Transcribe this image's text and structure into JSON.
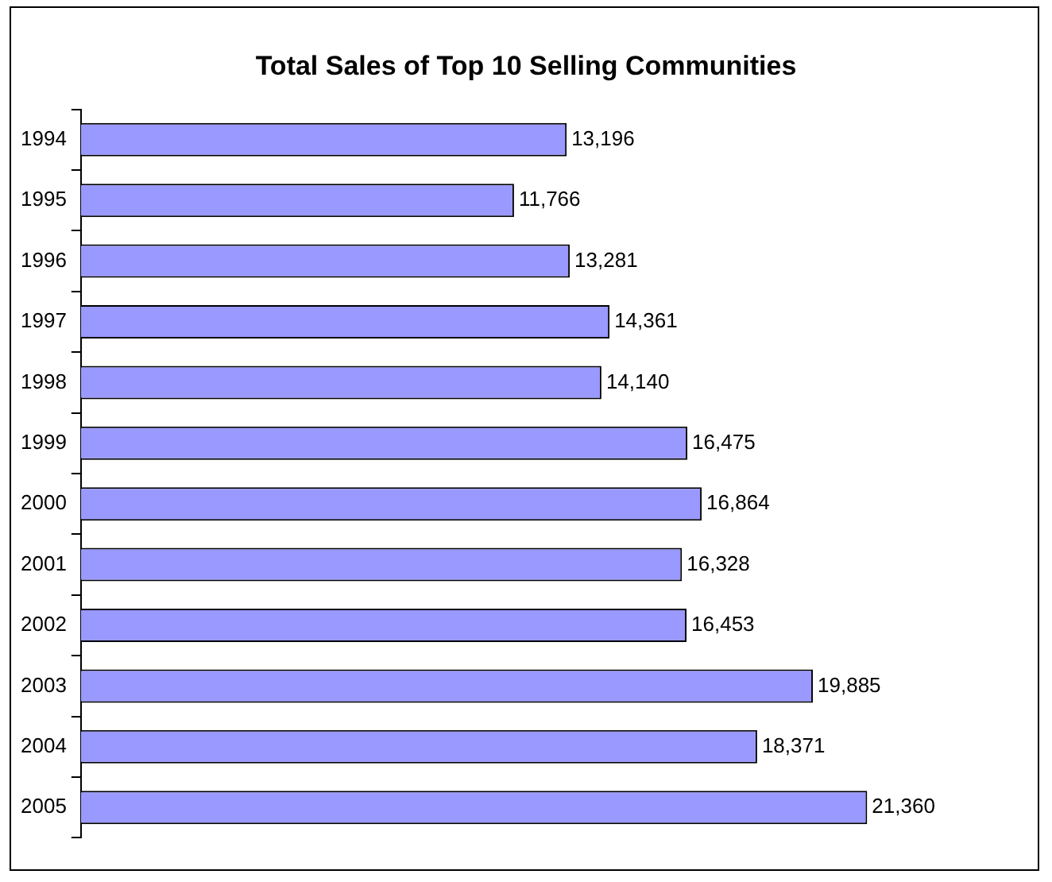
{
  "chart_data": {
    "type": "bar",
    "orientation": "horizontal",
    "title": "Total Sales of Top 10 Selling Communities",
    "categories": [
      "1994",
      "1995",
      "1996",
      "1997",
      "1998",
      "1999",
      "2000",
      "2001",
      "2002",
      "2003",
      "2004",
      "2005"
    ],
    "values": [
      13196,
      11766,
      13281,
      14361,
      14140,
      16475,
      16864,
      16328,
      16453,
      19885,
      18371,
      21360
    ],
    "color": "#9999ff",
    "value_labels": [
      "13,196",
      "11,766",
      "13,281",
      "14,361",
      "14,140",
      "16,475",
      "16,864",
      "16,328",
      "16,453",
      "19,885",
      "18,371",
      "21,360"
    ],
    "grid": false,
    "legend": false
  }
}
